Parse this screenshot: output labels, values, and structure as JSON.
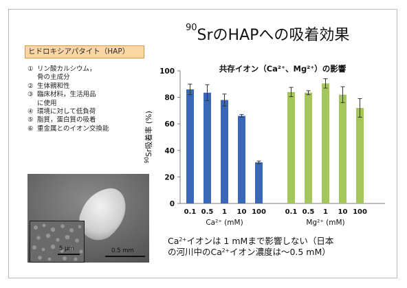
{
  "slide": {
    "title_sup": "90",
    "title_main": "SrのHAPへの吸着効果",
    "hap_label": "ヒドロキシアパタイト（HAP）",
    "properties": [
      {
        "num": "①",
        "text": "リン酸カルシウム，"
      },
      {
        "num": "",
        "text": "骨の主成分"
      },
      {
        "num": "②",
        "text": "生体親和性"
      },
      {
        "num": "③",
        "text": "臨床材料，生活用品"
      },
      {
        "num": "",
        "text": "に使用"
      },
      {
        "num": "④",
        "text": "環境に対して低負荷"
      },
      {
        "num": "⑤",
        "text": "脂質，蛋白質の吸着"
      },
      {
        "num": "⑥",
        "text": "重金属とのイオン交換能"
      }
    ],
    "scale_small": "5 μm",
    "scale_large": "0.5 mm",
    "caption": {
      "line1_a": "Ca",
      "line1_sup": "2+",
      "line1_b": "イオンは 1 mMまで影響しない（日本",
      "line2_a": "の河川中のCa",
      "line2_sup": "2+",
      "line2_b": "イオン濃度は～0.5 mM）"
    }
  },
  "chart_data": {
    "type": "bar",
    "title": "共存イオン（Ca²⁺、Mg²⁺）の影響",
    "ylabel_sup": "90",
    "ylabel": "Sr吸着率 (%)",
    "ylim": [
      0,
      100
    ],
    "yticks": [
      0,
      20,
      40,
      60,
      80,
      100
    ],
    "grid": false,
    "groups": [
      {
        "name": "Ca²⁺ (mM)",
        "color": "#3a67b8",
        "categories": [
          "0.1",
          "0.5",
          "1",
          "10",
          "100"
        ],
        "values": [
          86,
          83.5,
          78,
          66,
          31
        ],
        "errors": [
          4,
          6,
          4.5,
          1,
          1
        ]
      },
      {
        "name": "Mg²⁺ (mM)",
        "color": "#a4c65a",
        "categories": [
          "0.1",
          "0.5",
          "1",
          "10",
          "100"
        ],
        "values": [
          84,
          83.5,
          90.5,
          82,
          72
        ],
        "errors": [
          3.5,
          1.5,
          3.5,
          6,
          7
        ]
      }
    ]
  }
}
